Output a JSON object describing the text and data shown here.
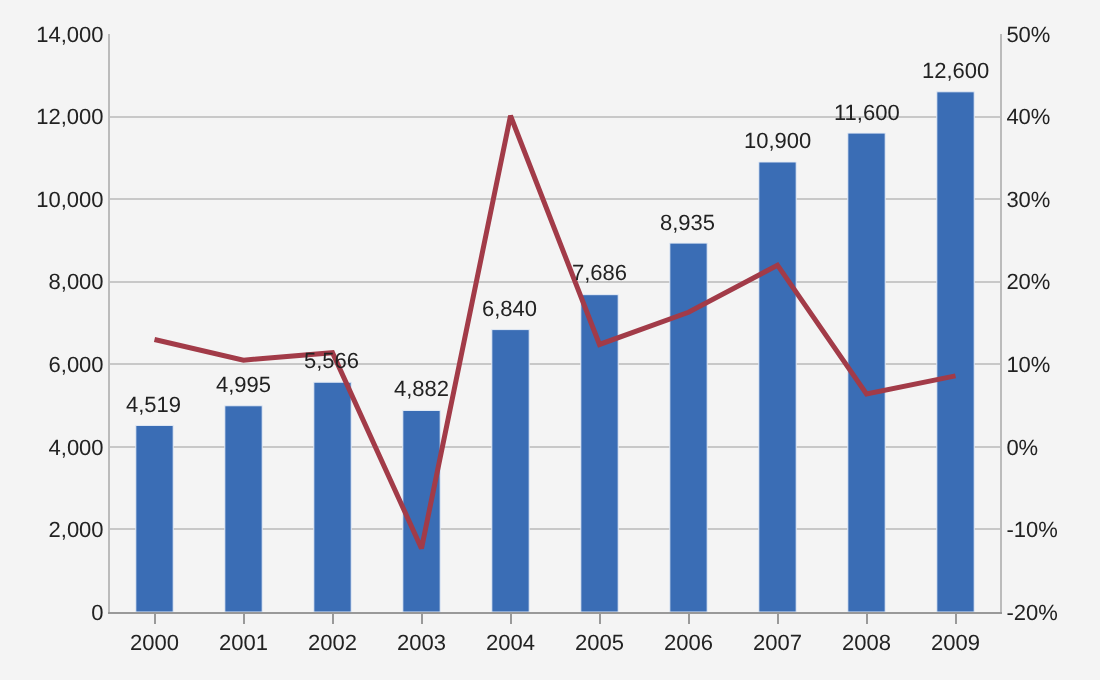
{
  "chart_data": {
    "type": "bar",
    "categories": [
      "2000",
      "2001",
      "2002",
      "2003",
      "2004",
      "2005",
      "2006",
      "2007",
      "2008",
      "2009"
    ],
    "series": [
      {
        "color": "#3a6db5",
        "values": [
          4519,
          4995,
          5566,
          4882,
          6840,
          7686,
          8935,
          10900,
          11600,
          12600
        ],
        "value_labels": [
          "4,519",
          "4,995",
          "5,566",
          "4,882",
          "6,840",
          "7,686",
          "8,935",
          "10,900",
          "11,600",
          "12,600"
        ]
      },
      {
        "type": "line",
        "axis": "y2",
        "color": "#a23b48",
        "values": [
          13,
          10.5,
          11.4,
          -12.3,
          40.1,
          12.4,
          16.3,
          22,
          6.4,
          8.6
        ]
      }
    ],
    "ylim": [
      0,
      14000
    ],
    "yticks": [
      {
        "value": 0,
        "label": "0"
      },
      {
        "value": 2000,
        "label": "2,000"
      },
      {
        "value": 4000,
        "label": "4,000"
      },
      {
        "value": 6000,
        "label": "6,000"
      },
      {
        "value": 8000,
        "label": "8,000"
      },
      {
        "value": 10000,
        "label": "10,000"
      },
      {
        "value": 12000,
        "label": "12,000"
      },
      {
        "value": 14000,
        "label": "14,000"
      }
    ],
    "y2lim": [
      -20,
      50
    ],
    "y2ticks": [
      {
        "value": -20,
        "label": "-20%"
      },
      {
        "value": -10,
        "label": "-10%"
      },
      {
        "value": 0,
        "label": "0%"
      },
      {
        "value": 10,
        "label": "10%"
      },
      {
        "value": 20,
        "label": "20%"
      },
      {
        "value": 30,
        "label": "30%"
      },
      {
        "value": 40,
        "label": "40%"
      },
      {
        "value": 50,
        "label": "50%"
      }
    ],
    "grid": "y",
    "legend": false,
    "marker": "none",
    "line_style": "solid"
  }
}
